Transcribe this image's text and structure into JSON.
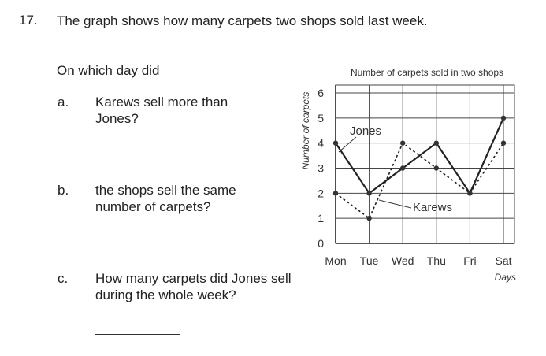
{
  "question": {
    "number": "17.",
    "intro": "The graph shows how many carpets two shops sold last week.",
    "prompt": "On which day did",
    "parts": [
      {
        "label": "a.",
        "text": "Karews sell more than Jones?"
      },
      {
        "label": "b.",
        "text": "the shops sell the same number of carpets?"
      },
      {
        "label": "c.",
        "text": "How many carpets did Jones sell during the whole week?"
      }
    ]
  },
  "chart_data": {
    "type": "line",
    "title": "Number of carpets sold in two shops",
    "xlabel": "Days",
    "ylabel": "Number of carpets",
    "categories": [
      "Mon",
      "Tue",
      "Wed",
      "Thu",
      "Fri",
      "Sat"
    ],
    "yticks": [
      0,
      1,
      2,
      3,
      4,
      5,
      6
    ],
    "ylim": [
      0,
      6
    ],
    "grid": true,
    "series": [
      {
        "name": "Jones",
        "values": [
          4,
          2,
          3,
          4,
          2,
          5
        ],
        "line_style": "solid"
      },
      {
        "name": "Karews",
        "values": [
          2,
          1,
          4,
          3,
          2,
          4
        ],
        "line_style": "dotted"
      }
    ]
  }
}
